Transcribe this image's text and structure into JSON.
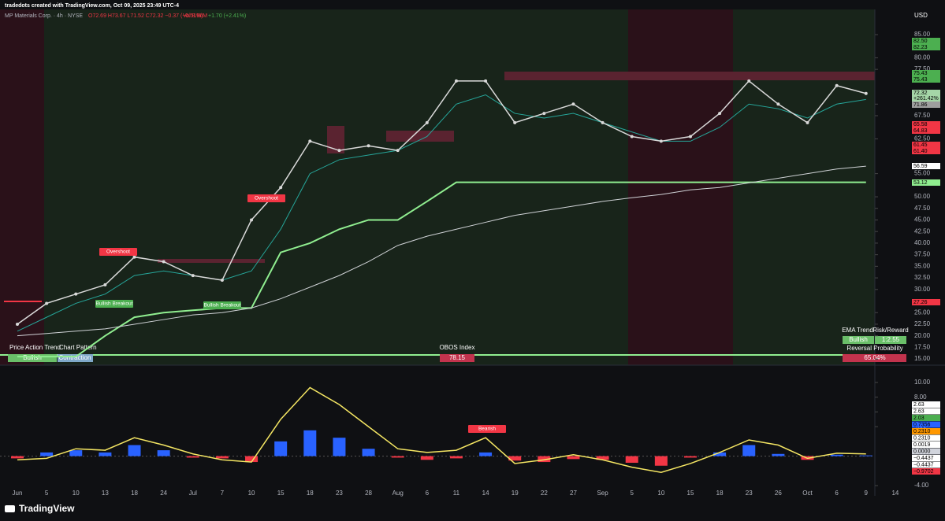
{
  "header": {
    "credit": "tradedots created with TradingView.com, Oct 09, 2025 23:49 UTC-4",
    "symbol": "MP Materials Corp. · 4h · NYSE",
    "ohlc": "O72.69 H73.67 L71.52 C72.32 −0.37 (−0.51%)",
    "volume": "Vol 8.86M",
    "change": "+1.70 (+2.41%)",
    "currency": "USD",
    "brand": "TradingView"
  },
  "chart_data": {
    "type": "line",
    "categories": [
      "Jun",
      "5",
      "10",
      "13",
      "18",
      "24",
      "Jul",
      "7",
      "10",
      "15",
      "18",
      "23",
      "28",
      "Aug",
      "6",
      "11",
      "14",
      "19",
      "22",
      "27",
      "Sep",
      "5",
      "10",
      "15",
      "18",
      "23",
      "26",
      "Oct",
      "6",
      "9",
      "14"
    ],
    "series": [
      {
        "name": "MP",
        "color": "#d9d9d9",
        "values": [
          22.5,
          27,
          29,
          31,
          37,
          36,
          33,
          32,
          45,
          52,
          62,
          60,
          61,
          60,
          66,
          75,
          75,
          66,
          68,
          70,
          66,
          63,
          62,
          63,
          68,
          75,
          70,
          66,
          74,
          72.3,
          null
        ]
      },
      {
        "name": "EMA",
        "color": "#26a69a",
        "values": [
          21,
          24,
          27,
          29,
          33,
          34,
          33,
          32,
          34,
          43,
          55,
          58,
          59,
          60,
          63,
          70,
          72,
          68,
          67,
          68,
          66,
          64,
          62,
          62,
          65,
          70,
          69,
          67,
          70,
          71,
          null
        ]
      },
      {
        "name": "MA",
        "color": "#cfd2d6",
        "values": [
          20,
          20.5,
          21,
          21.5,
          22.5,
          23.5,
          24.5,
          25,
          26,
          28,
          30.5,
          33,
          36,
          39.5,
          41.5,
          43,
          44.5,
          46,
          47,
          48,
          49,
          49.8,
          50.5,
          51.5,
          52,
          53,
          54,
          55,
          56,
          56.6,
          null
        ]
      },
      {
        "name": "Stop",
        "color": "#90ee90",
        "values": [
          15.5,
          15.5,
          15.5,
          20,
          24,
          25,
          25.5,
          26,
          26,
          38,
          40,
          43,
          45,
          45,
          49,
          53.12,
          53.12,
          53.12,
          53.12,
          53.12,
          53.12,
          53.12,
          53.12,
          53.12,
          53.12,
          53.12,
          53.12,
          53.12,
          53.12,
          53.12,
          null
        ]
      }
    ],
    "ylim": [
      14,
      87
    ],
    "yticks": [
      {
        "value": 15,
        "label": "15.00"
      },
      {
        "value": 17.5,
        "label": "17.50"
      },
      {
        "value": 20,
        "label": "20.00"
      },
      {
        "value": 22.5,
        "label": "22.50"
      },
      {
        "value": 25,
        "label": "25.00"
      },
      {
        "value": 30,
        "label": "30.00"
      },
      {
        "value": 32.5,
        "label": "32.50"
      },
      {
        "value": 35,
        "label": "35.00"
      },
      {
        "value": 37.5,
        "label": "37.50"
      },
      {
        "value": 40,
        "label": "40.00"
      },
      {
        "value": 42.5,
        "label": "42.50"
      },
      {
        "value": 45,
        "label": "45.00"
      },
      {
        "value": 47.5,
        "label": "47.50"
      },
      {
        "value": 50,
        "label": "50.00"
      },
      {
        "value": 55,
        "label": "55.00"
      },
      {
        "value": 62.5,
        "label": "62.50"
      },
      {
        "value": 67.5,
        "label": "67.50"
      },
      {
        "value": 70,
        "label": "70.00"
      },
      {
        "value": 77.5,
        "label": "77.50"
      },
      {
        "value": 80,
        "label": "80.00"
      },
      {
        "value": 85,
        "label": "85.00"
      }
    ]
  },
  "oscillator": {
    "type": "bar",
    "ylim": [
      -4.85,
      11.7
    ],
    "yticks": [
      {
        "value": 10,
        "label": "10.00"
      },
      {
        "value": 8,
        "label": "8.00"
      },
      {
        "value": 6,
        "label": "6.00"
      },
      {
        "value": 4,
        "label": "4.00"
      },
      {
        "value": -4,
        "label": "-4.00"
      }
    ],
    "histogram": [
      -0.3,
      0.5,
      0.8,
      0.5,
      1.5,
      0.8,
      -0.2,
      -0.3,
      -0.8,
      2,
      3.5,
      2.5,
      1,
      -0.2,
      -0.5,
      -0.3,
      0.5,
      -0.6,
      -0.8,
      -0.4,
      -0.5,
      -0.9,
      -1.3,
      -0.2,
      0.5,
      1.5,
      0.3,
      -0.5,
      0.2,
      0.1,
      null
    ],
    "line": [
      -0.5,
      -0.3,
      1,
      0.8,
      2.5,
      1.5,
      0.3,
      -0.5,
      -0.8,
      5,
      9.3,
      7,
      4,
      1,
      0.5,
      0.8,
      2.5,
      -1,
      -0.5,
      0.2,
      -0.5,
      -1.5,
      -2.2,
      -1,
      0.5,
      2.2,
      1.5,
      -0.3,
      0.4,
      0.3,
      null
    ],
    "positive_color": "#2962ff",
    "negative_color": "#f23645",
    "line_color": "#f5e663"
  },
  "price_tags": [
    {
      "label": "82.50",
      "color": "#4caf50"
    },
    {
      "label": "82.23",
      "color": "#4caf50"
    },
    {
      "label": "75.43",
      "color": "#4caf50"
    },
    {
      "label": "75.43",
      "color": "#4caf50"
    },
    {
      "label": "72.32",
      "color": "#a5d6a7"
    },
    {
      "label": "+261.42%",
      "color": "#a5d6a7"
    },
    {
      "label": "71.86",
      "color": "#9e9e9e"
    },
    {
      "label": "65.58",
      "color": "#f23645"
    },
    {
      "label": "64.83",
      "color": "#f23645"
    },
    {
      "label": "61.45",
      "color": "#f23645"
    },
    {
      "label": "61.40",
      "color": "#f23645"
    },
    {
      "label": "56.59",
      "color": "#ffffff"
    },
    {
      "label": "53.12",
      "color": "#90ee90"
    },
    {
      "label": "27.26",
      "color": "#f23645"
    }
  ],
  "osc_tags": [
    {
      "label": "2.63",
      "color": "#ffffff"
    },
    {
      "label": "2.63",
      "color": "#ffffff"
    },
    {
      "label": "2.03",
      "color": "#4caf50"
    },
    {
      "label": "0.7356",
      "color": "#2962ff"
    },
    {
      "label": "0.2310",
      "color": "#ff9800"
    },
    {
      "label": "0.2310",
      "color": "#ffffff"
    },
    {
      "label": "0.0019",
      "color": "#ffffff"
    },
    {
      "label": "0.0000",
      "color": "#d1d4dc"
    },
    {
      "label": "−0.4437",
      "color": "#ffffff"
    },
    {
      "label": "−0.4437",
      "color": "#ffffff"
    },
    {
      "label": "−0.9702",
      "color": "#f23645"
    }
  ],
  "annotations": [
    "Overshoot",
    "Bullish Breakout",
    "Overshoot",
    "Bullish Breakout",
    "Bearish"
  ],
  "panels": {
    "price_action_trend": "Price Action Trend",
    "chart_pattern": "Chart Pattern",
    "trend_value": "Bullish",
    "pattern_value": "Contraction",
    "obos_title": "OBOS Index",
    "obos_value": "78.15",
    "ema_trend": "EMA Trend",
    "risk_reward": "Risk/Reward",
    "ema_value": "Bullish",
    "rr_value": "1:2.55",
    "reversal_title": "Reversal Probability",
    "reversal_value": "65.04%"
  }
}
